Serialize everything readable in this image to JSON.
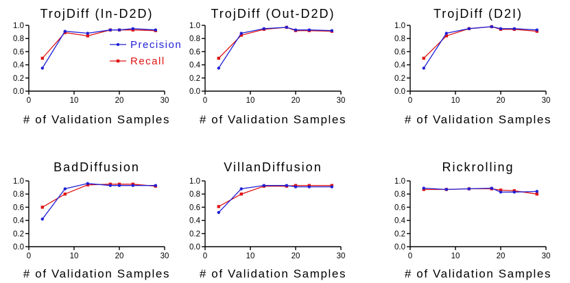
{
  "colors": {
    "precision": "#1f1fd6",
    "recall": "#e01414"
  },
  "chart_data": [
    {
      "type": "line",
      "title": "TrojDiff (In-D2D)",
      "xlabel": "# of Validation Samples",
      "x": [
        3,
        8,
        13,
        18,
        20,
        23,
        28
      ],
      "xlim": [
        0,
        30
      ],
      "xticks": [
        0,
        10,
        20,
        30
      ],
      "ylim": [
        0,
        1
      ],
      "yticks": [
        "0.0",
        "0.2",
        "0.4",
        "0.6",
        "0.8",
        "1.0"
      ],
      "legend": "top-right",
      "series": [
        {
          "name": "Precision",
          "values": [
            0.35,
            0.91,
            0.88,
            0.93,
            0.93,
            0.95,
            0.93
          ]
        },
        {
          "name": "Recall",
          "values": [
            0.5,
            0.89,
            0.84,
            0.93,
            0.93,
            0.93,
            0.92
          ]
        }
      ]
    },
    {
      "type": "line",
      "title": "TrojDiff (Out-D2D)",
      "xlabel": "# of Validation Samples",
      "x": [
        3,
        8,
        13,
        18,
        20,
        23,
        28
      ],
      "xlim": [
        0,
        30
      ],
      "xticks": [
        0,
        10,
        20,
        30
      ],
      "ylim": [
        0,
        1
      ],
      "yticks": [
        "0.0",
        "0.2",
        "0.4",
        "0.6",
        "0.8",
        "1.0"
      ],
      "series": [
        {
          "name": "Precision",
          "values": [
            0.35,
            0.88,
            0.95,
            0.97,
            0.93,
            0.93,
            0.92
          ]
        },
        {
          "name": "Recall",
          "values": [
            0.5,
            0.85,
            0.94,
            0.97,
            0.92,
            0.92,
            0.91
          ]
        }
      ]
    },
    {
      "type": "line",
      "title": "TrojDiff (D2I)",
      "xlabel": "# of Validation Samples",
      "x": [
        3,
        8,
        13,
        18,
        20,
        23,
        28
      ],
      "xlim": [
        0,
        30
      ],
      "xticks": [
        0,
        10,
        20,
        30
      ],
      "ylim": [
        0,
        1
      ],
      "yticks": [
        "0.0",
        "0.2",
        "0.4",
        "0.6",
        "0.8",
        "1.0"
      ],
      "series": [
        {
          "name": "Precision",
          "values": [
            0.35,
            0.88,
            0.95,
            0.98,
            0.95,
            0.95,
            0.93
          ]
        },
        {
          "name": "Recall",
          "values": [
            0.5,
            0.84,
            0.95,
            0.98,
            0.94,
            0.94,
            0.91
          ]
        }
      ]
    },
    {
      "type": "line",
      "title": "BadDiffusion",
      "xlabel": "# of Validation Samples",
      "x": [
        3,
        8,
        13,
        18,
        20,
        23,
        28
      ],
      "xlim": [
        0,
        30
      ],
      "xticks": [
        0,
        10,
        20,
        30
      ],
      "ylim": [
        0,
        1
      ],
      "yticks": [
        "0.0",
        "0.2",
        "0.4",
        "0.6",
        "0.8",
        "1.0"
      ],
      "series": [
        {
          "name": "Precision",
          "values": [
            0.42,
            0.88,
            0.96,
            0.93,
            0.93,
            0.93,
            0.93
          ]
        },
        {
          "name": "Recall",
          "values": [
            0.6,
            0.8,
            0.94,
            0.95,
            0.95,
            0.95,
            0.92
          ]
        }
      ]
    },
    {
      "type": "line",
      "title": "VillanDiffusion",
      "xlabel": "# of Validation Samples",
      "x": [
        3,
        8,
        13,
        18,
        20,
        23,
        28
      ],
      "xlim": [
        0,
        30
      ],
      "xticks": [
        0,
        10,
        20,
        30
      ],
      "ylim": [
        0,
        1
      ],
      "yticks": [
        "0.0",
        "0.2",
        "0.4",
        "0.6",
        "0.8",
        "1.0"
      ],
      "series": [
        {
          "name": "Precision",
          "values": [
            0.52,
            0.88,
            0.93,
            0.93,
            0.91,
            0.91,
            0.91
          ]
        },
        {
          "name": "Recall",
          "values": [
            0.61,
            0.8,
            0.92,
            0.92,
            0.93,
            0.93,
            0.93
          ]
        }
      ]
    },
    {
      "type": "line",
      "title": "Rickrolling",
      "xlabel": "# of Validation Samples",
      "x": [
        3,
        8,
        13,
        18,
        20,
        23,
        28
      ],
      "xlim": [
        0,
        30
      ],
      "xticks": [
        0,
        10,
        20,
        30
      ],
      "ylim": [
        0,
        1
      ],
      "yticks": [
        "0.0",
        "0.2",
        "0.4",
        "0.6",
        "0.8",
        "1.0"
      ],
      "series": [
        {
          "name": "Precision",
          "values": [
            0.89,
            0.87,
            0.88,
            0.89,
            0.83,
            0.83,
            0.84
          ]
        },
        {
          "name": "Recall",
          "values": [
            0.87,
            0.87,
            0.88,
            0.88,
            0.86,
            0.85,
            0.8
          ]
        }
      ]
    }
  ]
}
